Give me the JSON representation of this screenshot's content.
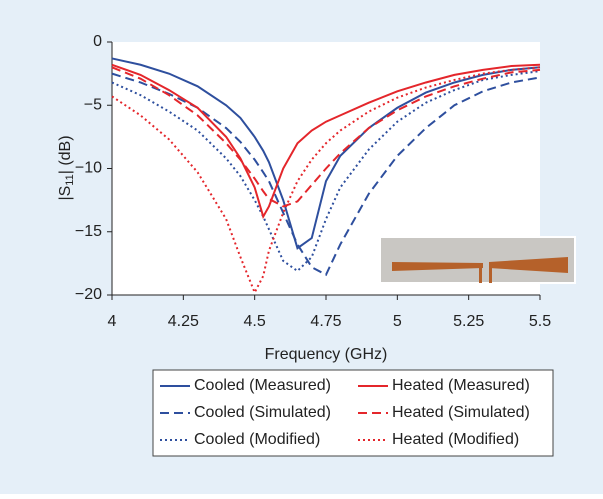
{
  "chart_data": {
    "type": "line",
    "x_label": "Frequency (GHz)",
    "y_label": [
      "|S",
      "11",
      "| (dB)"
    ],
    "x": [
      4,
      4.1,
      4.2,
      4.3,
      4.4,
      4.45,
      4.5,
      4.53,
      4.55,
      4.6,
      4.65,
      4.7,
      4.75,
      4.8,
      4.9,
      5,
      5.1,
      5.2,
      5.3,
      5.4,
      5.5
    ],
    "series": [
      {
        "name": "Cooled (Measured)",
        "color": "#2e4f9e",
        "dash": "solid",
        "values": [
          -1.3,
          -1.8,
          -2.5,
          -3.5,
          -5,
          -6,
          -7.5,
          -8.6,
          -9.5,
          -12.5,
          -16.3,
          -15.5,
          -11,
          -9,
          -6.8,
          -5.2,
          -4,
          -3.2,
          -2.6,
          -2.2,
          -2
        ]
      },
      {
        "name": "Cooled (Simulated)",
        "color": "#2e4f9e",
        "dash": "dashed",
        "values": [
          -2.5,
          -3.2,
          -4.1,
          -5.2,
          -6.8,
          -7.9,
          -9.3,
          -10.3,
          -11,
          -13.5,
          -16,
          -17.8,
          -18.4,
          -16,
          -12,
          -9,
          -6.8,
          -5,
          -3.9,
          -3.2,
          -2.8
        ]
      },
      {
        "name": "Cooled (Modified)",
        "color": "#2e4f9e",
        "dash": "dotted",
        "values": [
          -3.2,
          -4.2,
          -5.5,
          -7,
          -9.2,
          -10.6,
          -12.5,
          -13.8,
          -14.8,
          -17.3,
          -18.1,
          -17,
          -14,
          -11.5,
          -8.5,
          -6.3,
          -4.8,
          -3.8,
          -3,
          -2.6,
          -2.3
        ]
      },
      {
        "name": "Heated (Measured)",
        "color": "#e4262b",
        "dash": "solid",
        "values": [
          -1.8,
          -2.6,
          -3.8,
          -5.2,
          -7.5,
          -9.2,
          -11.5,
          -13.8,
          -13,
          -10,
          -8,
          -7,
          -6.3,
          -5.8,
          -4.8,
          -3.9,
          -3.2,
          -2.6,
          -2.2,
          -1.9,
          -1.8
        ]
      },
      {
        "name": "Heated (Simulated)",
        "color": "#e4262b",
        "dash": "dashed",
        "values": [
          -2,
          -2.9,
          -4.2,
          -5.8,
          -8,
          -9.3,
          -10.8,
          -11.8,
          -12.4,
          -13,
          -12.6,
          -11.3,
          -10,
          -8.8,
          -6.8,
          -5.4,
          -4.3,
          -3.5,
          -2.9,
          -2.4,
          -2.2
        ]
      },
      {
        "name": "Heated (Modified)",
        "color": "#e4262b",
        "dash": "dotted",
        "values": [
          -4.3,
          -5.8,
          -7.7,
          -10.3,
          -14,
          -17,
          -19.8,
          -18.5,
          -16.5,
          -13.5,
          -11,
          -9.3,
          -8,
          -7,
          -5.5,
          -4.4,
          -3.6,
          -3,
          -2.5,
          -2.2,
          -2
        ]
      }
    ],
    "xlim": [
      4,
      5.5
    ],
    "xticks": [
      4,
      4.25,
      4.5,
      4.75,
      5,
      5.25,
      5.5
    ],
    "ylim": [
      -20,
      0
    ],
    "yticks": [
      {
        "value": -20,
        "label": "−20"
      },
      {
        "value": -15,
        "label": "−15"
      },
      {
        "value": -10,
        "label": "−10"
      },
      {
        "value": -5,
        "label": "−5"
      },
      0
    ],
    "grid": false
  }
}
